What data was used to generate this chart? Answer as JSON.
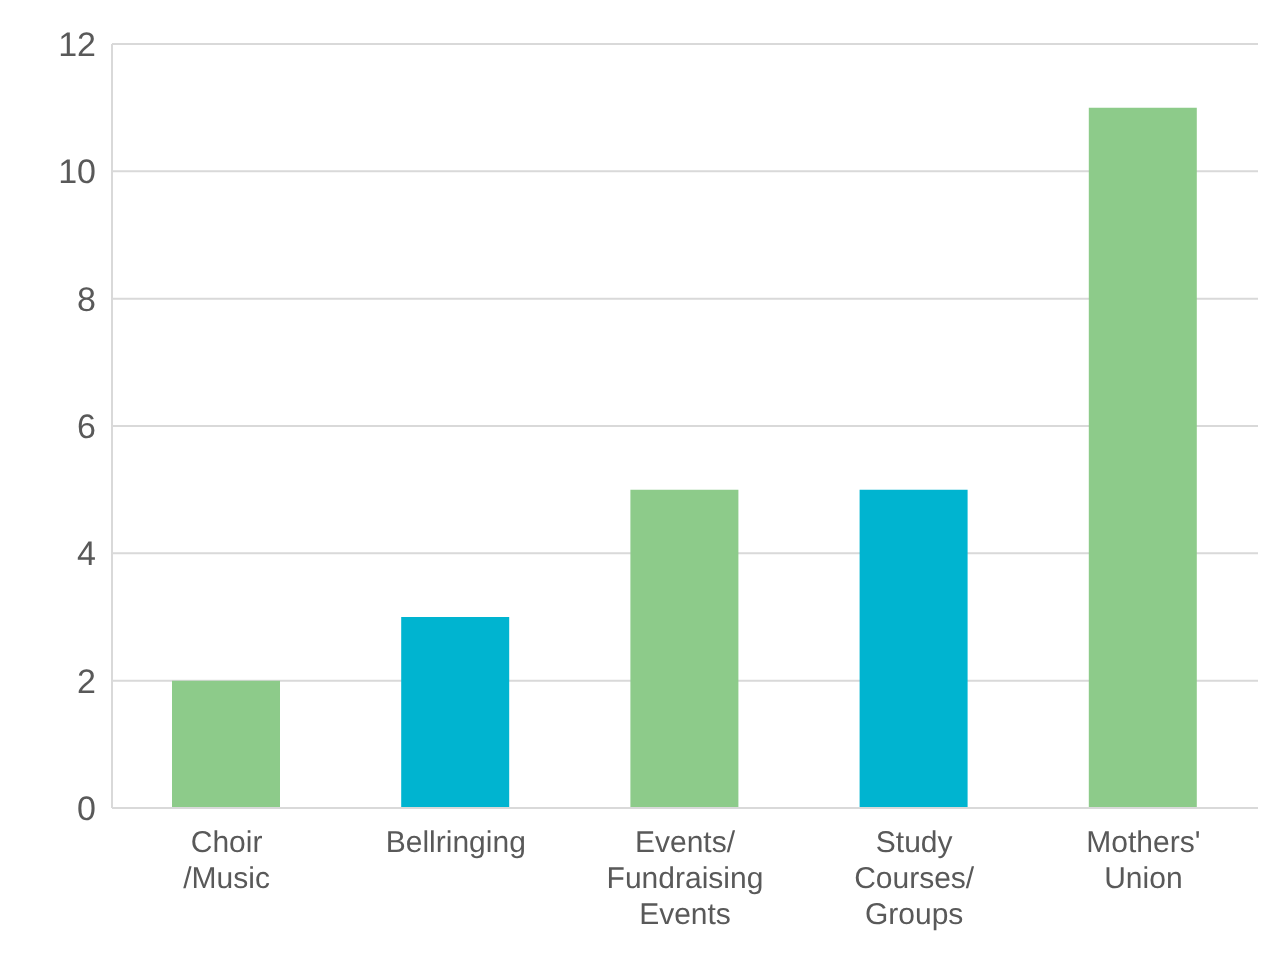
{
  "chart_data": {
    "type": "bar",
    "categories": [
      "Choir /Music",
      "Bellringing",
      "Events/ Fundraising Events",
      "Study Courses/ Groups",
      "Mothers' Union"
    ],
    "values": [
      2,
      3,
      5,
      5,
      11
    ],
    "colors": [
      "#8dcb8a",
      "#00b4d0",
      "#8dcb8a",
      "#00b4d0",
      "#8dcb8a"
    ],
    "ylim": [
      0,
      12
    ],
    "yticks": [
      0,
      2,
      4,
      6,
      8,
      10,
      12
    ],
    "grid": "y"
  }
}
